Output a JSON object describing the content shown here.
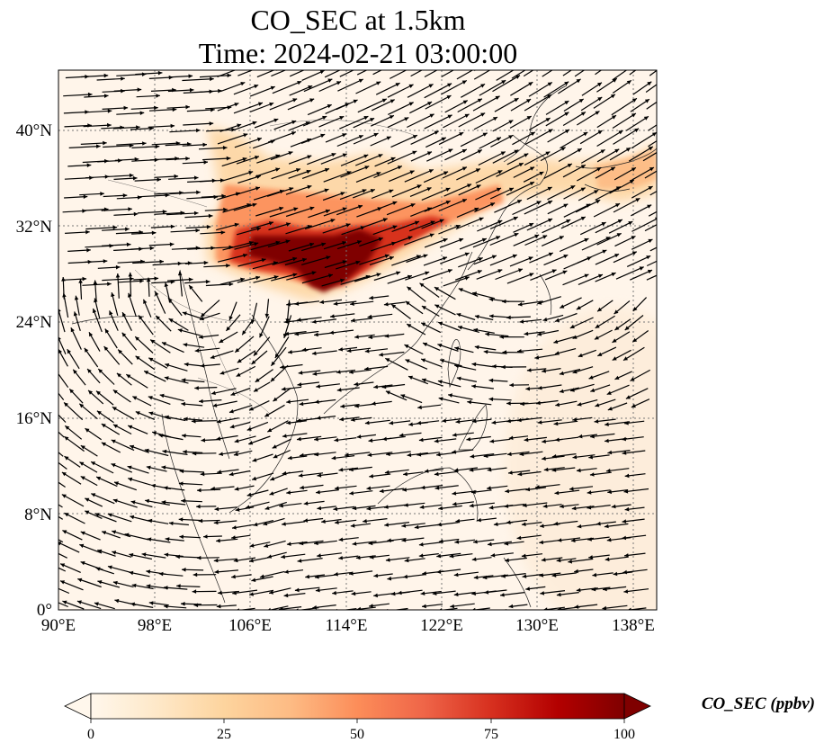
{
  "title_line1": "CO_SEC at 1.5km",
  "title_line2": "Time: 2024-02-21 03:00:00",
  "x_ticks": [
    "90°E",
    "98°E",
    "106°E",
    "114°E",
    "122°E",
    "130°E",
    "138°E"
  ],
  "y_ticks": [
    "0°",
    "8°N",
    "16°N",
    "24°N",
    "32°N",
    "40°N"
  ],
  "colorbar": {
    "label": "CO_SEC (ppbv)",
    "ticks": [
      "0",
      "25",
      "50",
      "75",
      "100"
    ],
    "colormap": [
      "#fff7ec",
      "#fee8c8",
      "#fdd49e",
      "#fdbb84",
      "#fc8d59",
      "#ef6548",
      "#d7301f",
      "#b30000",
      "#7f0000"
    ]
  },
  "map": {
    "extent_lon": [
      90,
      140
    ],
    "extent_lat": [
      0,
      45
    ],
    "field": "CO_SEC",
    "units": "ppbv",
    "high_concentration_band": "eastern China plume (~27–37°N, 102–125°E), extending east over Japan (~133–140°E, 35–38°N)"
  }
}
